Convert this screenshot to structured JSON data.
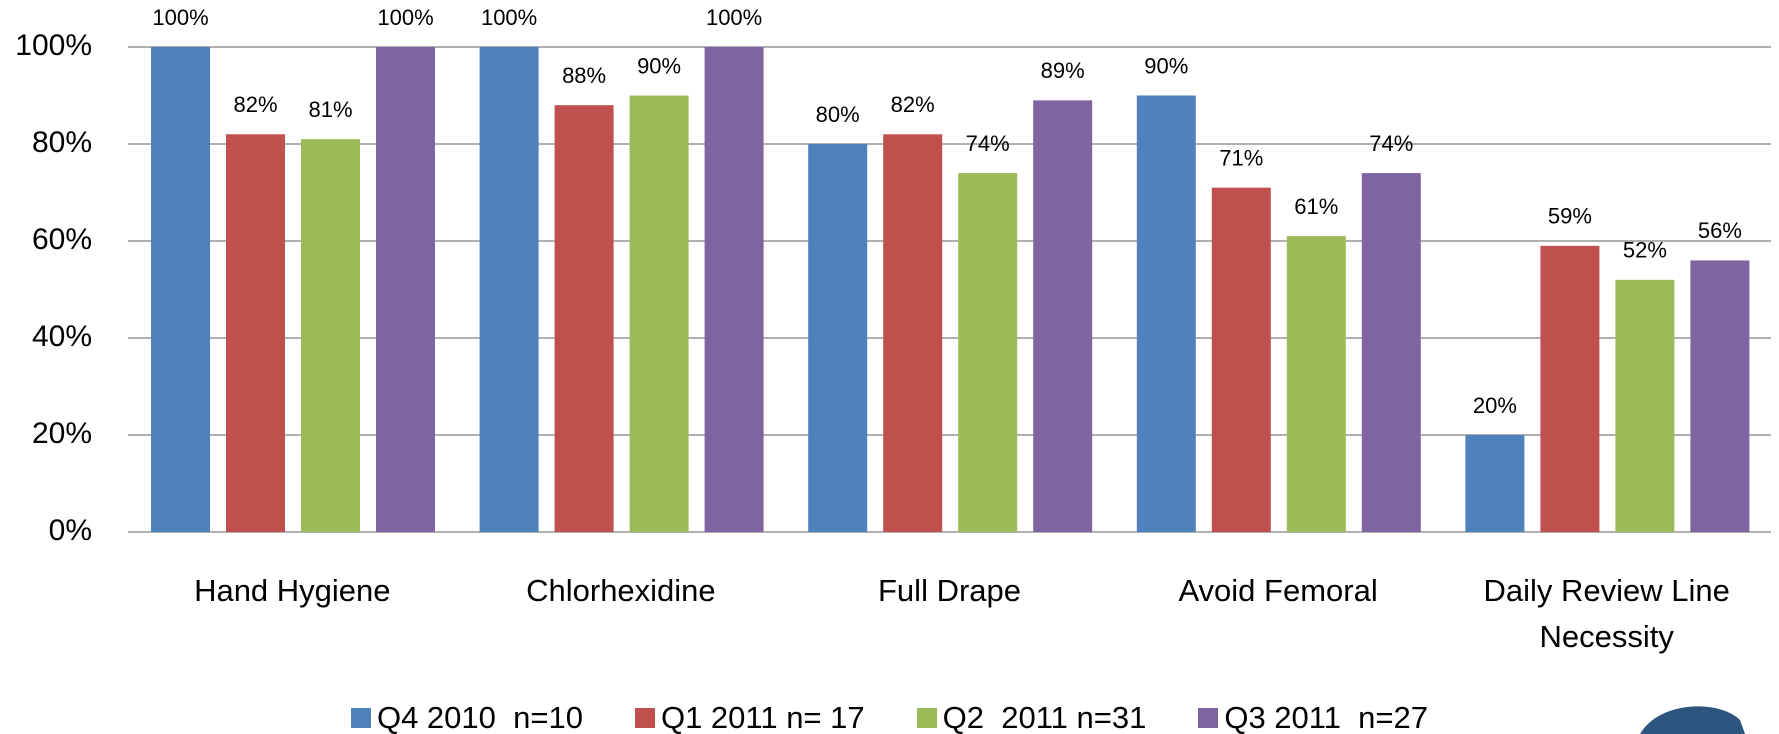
{
  "chart_data": {
    "type": "bar",
    "categories": [
      "Hand Hygiene",
      "Chlorhexidine",
      "Full Drape",
      "Avoid Femoral",
      "Daily Review Line Necessity"
    ],
    "series": [
      {
        "name": "Q4 2010  n=10",
        "color": "#4f81bd",
        "values": [
          100,
          100,
          80,
          90,
          20
        ],
        "value_labels": [
          "100%",
          "100%",
          "80%",
          "90%",
          "20%"
        ]
      },
      {
        "name": "Q1 2011 n= 17",
        "color": "#c0504d",
        "values": [
          82,
          88,
          82,
          71,
          59
        ],
        "value_labels": [
          "82%",
          "88%",
          "82%",
          "71%",
          "59%"
        ]
      },
      {
        "name": "Q2  2011 n=31",
        "color": "#9bbb59",
        "values": [
          81,
          90,
          74,
          61,
          52
        ],
        "value_labels": [
          "81%",
          "90%",
          "74%",
          "61%",
          "52%"
        ]
      },
      {
        "name": "Q3 2011  n=27",
        "color": "#8064a2",
        "values": [
          100,
          100,
          89,
          74,
          56
        ],
        "value_labels": [
          "100%",
          "100%",
          "89%",
          "74%",
          "56%"
        ]
      }
    ],
    "ylim": [
      0,
      100
    ],
    "yticks": [
      {
        "value": 0,
        "label": "0%"
      },
      {
        "value": 20,
        "label": "20%"
      },
      {
        "value": 40,
        "label": "40%"
      },
      {
        "value": 60,
        "label": "60%"
      },
      {
        "value": 80,
        "label": "80%"
      },
      {
        "value": 100,
        "label": "100%"
      }
    ],
    "grid": true,
    "legend": "bottom"
  }
}
